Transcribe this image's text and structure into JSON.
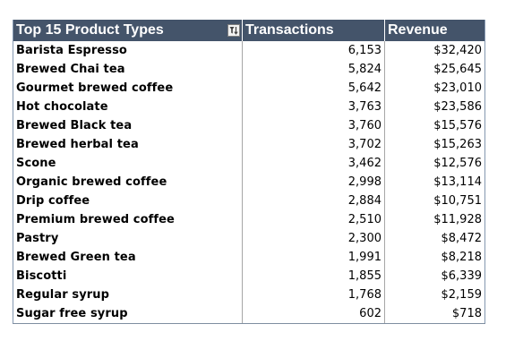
{
  "pivot_table": {
    "headers": {
      "product_types": "Top 15 Product Types",
      "transactions": "Transactions",
      "revenue": "Revenue"
    },
    "filter_icon": "filter-sort-icon",
    "rows": [
      {
        "name": "Barista Espresso",
        "transactions": "6,153",
        "revenue": "$32,420"
      },
      {
        "name": "Brewed Chai tea",
        "transactions": "5,824",
        "revenue": "$25,645"
      },
      {
        "name": "Gourmet brewed coffee",
        "transactions": "5,642",
        "revenue": "$23,010"
      },
      {
        "name": "Hot chocolate",
        "transactions": "3,763",
        "revenue": "$23,586"
      },
      {
        "name": "Brewed Black tea",
        "transactions": "3,760",
        "revenue": "$15,576"
      },
      {
        "name": "Brewed herbal tea",
        "transactions": "3,702",
        "revenue": "$15,263"
      },
      {
        "name": "Scone",
        "transactions": "3,462",
        "revenue": "$12,576"
      },
      {
        "name": "Organic brewed coffee",
        "transactions": "2,998",
        "revenue": "$13,114"
      },
      {
        "name": "Drip coffee",
        "transactions": "2,884",
        "revenue": "$10,751"
      },
      {
        "name": "Premium brewed coffee",
        "transactions": "2,510",
        "revenue": "$11,928"
      },
      {
        "name": "Pastry",
        "transactions": "2,300",
        "revenue": "$8,472"
      },
      {
        "name": "Brewed Green tea",
        "transactions": "1,991",
        "revenue": "$8,218"
      },
      {
        "name": "Biscotti",
        "transactions": "1,855",
        "revenue": "$6,339"
      },
      {
        "name": "Regular syrup",
        "transactions": "1,768",
        "revenue": "$2,159"
      },
      {
        "name": "Sugar free syrup",
        "transactions": "602",
        "revenue": "$718"
      }
    ]
  }
}
